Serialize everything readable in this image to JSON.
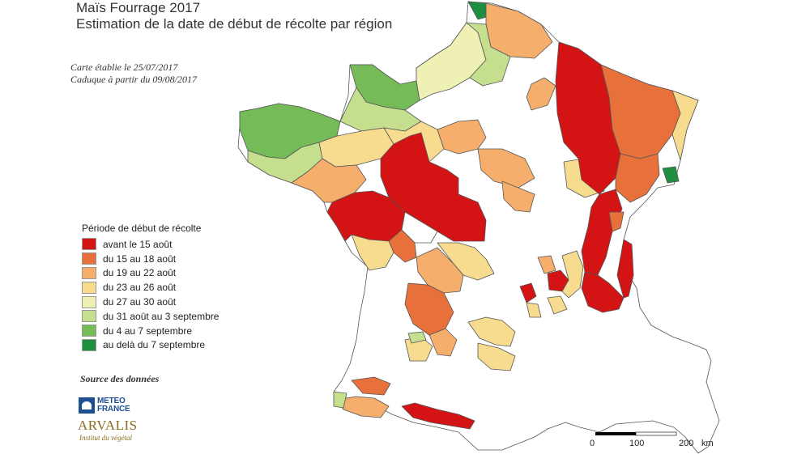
{
  "header": {
    "title": "Maïs Fourrage 2017",
    "subtitle": "Estimation de la date de début de récolte par région",
    "note_1": "Carte établie le 25/07/2017",
    "note_2": "Caduque à partir du 09/08/2017"
  },
  "legend": {
    "title": "Période de début de récolte",
    "items": [
      {
        "label": "avant le 15 août",
        "color": "#d41414"
      },
      {
        "label": "du 15 au 18 août",
        "color": "#e8703a"
      },
      {
        "label": "du 19 au 22 août",
        "color": "#f5ae6b"
      },
      {
        "label": "du 23 au 26 août",
        "color": "#f7db8e"
      },
      {
        "label": "du 27 au 30 août",
        "color": "#eef1b3"
      },
      {
        "label": "du 31 août au 3 septembre",
        "color": "#c5df8f"
      },
      {
        "label": "du 4 au 7 septembre",
        "color": "#75bc59"
      },
      {
        "label": "au delà du 7 septembre",
        "color": "#1e8f41"
      }
    ]
  },
  "source": {
    "label": "Source des données",
    "meteo_line1": "METEO",
    "meteo_line2": "FRANCE",
    "arvalis_name": "ARVALIS",
    "arvalis_sub": "Institut du végétal"
  },
  "scale": {
    "labels": [
      "0",
      "100",
      "200",
      "km"
    ]
  }
}
